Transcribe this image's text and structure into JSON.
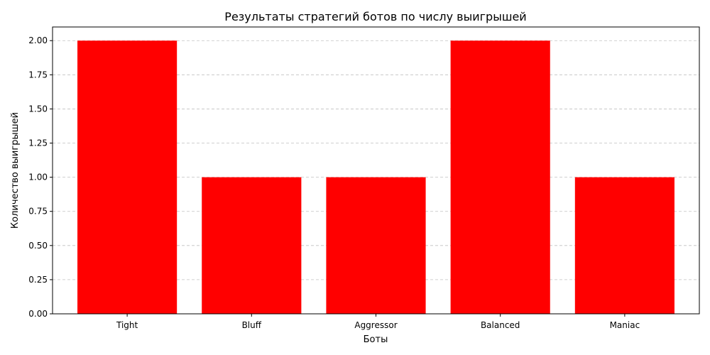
{
  "chart_data": {
    "type": "bar",
    "title": "Результаты стратегий ботов по числу выигрышей",
    "xlabel": "Боты",
    "ylabel": "Количество выигрышей",
    "categories": [
      "Tight",
      "Bluff",
      "Aggressor",
      "Balanced",
      "Maniac"
    ],
    "values": [
      2,
      1,
      1,
      2,
      1
    ],
    "ylim": [
      0,
      2.1
    ],
    "yticks": [
      "0.00",
      "0.25",
      "0.50",
      "0.75",
      "1.00",
      "1.25",
      "1.50",
      "1.75",
      "2.00"
    ],
    "grid": "y-dashed",
    "bar_color": "#ff0000",
    "grid_color": "#c0c0c0"
  }
}
